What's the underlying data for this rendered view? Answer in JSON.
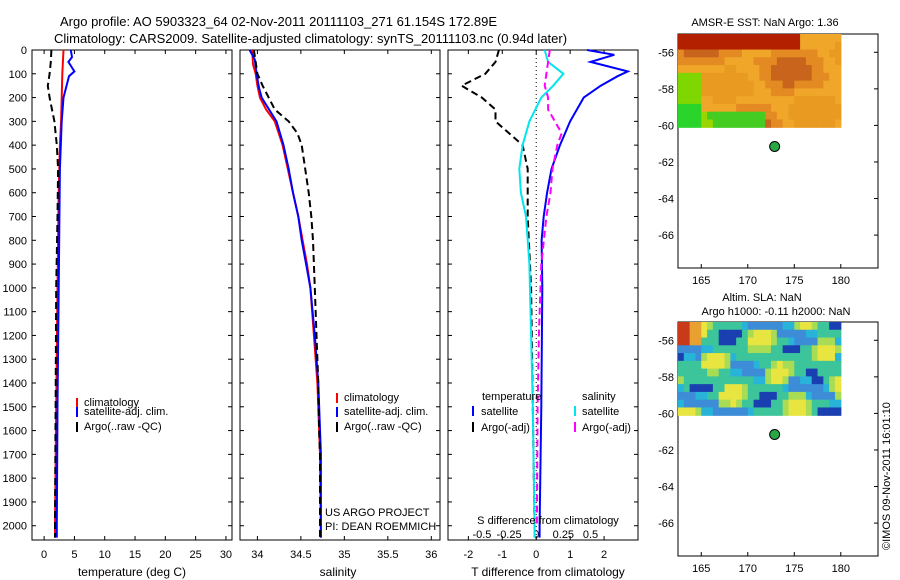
{
  "header": {
    "line1": "Argo profile: AO 5903323_64 02-Nov-2011 20111103_271 61.154S 172.89E",
    "line2": "Climatology: CARS2009. Satellite-adjusted climatology: synTS_20111103.nc (0.94d later)"
  },
  "credit": {
    "line1": "US ARGO PROJECT",
    "line2": "PI: DEAN ROEMMICH"
  },
  "stamp": "©IMOS 09-Nov-2011 16:01:10",
  "colors": {
    "climatology": "#ff0000",
    "satellite": "#0000ff",
    "argo": "#000000",
    "s_satellite": "#00e5ee",
    "s_argo": "#ff00ff"
  },
  "chart_data": [
    {
      "type": "line",
      "xlabel": "temperature (deg C)",
      "ylabel": "",
      "xlim": [
        -2,
        31
      ],
      "ylim": [
        2060,
        0
      ],
      "xticks": [
        0,
        5,
        10,
        15,
        20,
        25,
        30
      ],
      "yticks": [
        0,
        100,
        200,
        300,
        400,
        500,
        600,
        700,
        800,
        900,
        1000,
        1100,
        1200,
        1300,
        1400,
        1500,
        1600,
        1700,
        1800,
        1900,
        2000
      ],
      "legend": [
        "climatology",
        "satellite-adj. clim.",
        "Argo(..raw -QC)"
      ],
      "legend_position": "lower-right",
      "series": [
        {
          "name": "climatology",
          "style": "solid",
          "color": "#ff0000",
          "depth": [
            0,
            100,
            200,
            300,
            400,
            600,
            1000,
            1500,
            2000,
            2050
          ],
          "values": [
            3.2,
            3.0,
            2.9,
            2.8,
            2.6,
            2.4,
            2.2,
            2.0,
            1.8,
            1.8
          ]
        },
        {
          "name": "satellite-adj. clim.",
          "style": "solid",
          "color": "#0000ff",
          "depth": [
            0,
            30,
            50,
            90,
            110,
            200,
            300,
            500,
            1000,
            1500,
            2000,
            2050
          ],
          "values": [
            4.4,
            4.6,
            4.0,
            5.0,
            4.1,
            3.2,
            2.9,
            2.6,
            2.4,
            2.2,
            2.1,
            2.1
          ]
        },
        {
          "name": "Argo(..raw -QC)",
          "style": "dashed",
          "color": "#000000",
          "depth": [
            0,
            50,
            100,
            150,
            200,
            250,
            300,
            400,
            500,
            700,
            1000,
            1500,
            2000,
            2050
          ],
          "values": [
            1.2,
            1.1,
            0.9,
            0.6,
            0.9,
            1.3,
            1.7,
            2.1,
            2.3,
            2.2,
            2.0,
            1.9,
            1.8,
            1.8
          ]
        }
      ]
    },
    {
      "type": "line",
      "xlabel": "salinity",
      "ylabel": "",
      "xlim": [
        33.8,
        36.1
      ],
      "ylim": [
        2060,
        0
      ],
      "xticks": [
        34,
        34.5,
        35,
        35.5,
        36
      ],
      "legend": [
        "climatology",
        "satellite-adj. clim.",
        "Argo(..raw -QC)"
      ],
      "legend_position": "lower-right",
      "series": [
        {
          "name": "climatology",
          "style": "solid",
          "color": "#ff0000",
          "depth": [
            0,
            60,
            100,
            150,
            200,
            250,
            300,
            400,
            500,
            600,
            700,
            800,
            900,
            1000,
            1200,
            1400,
            1700,
            2050
          ],
          "values": [
            33.94,
            33.95,
            33.98,
            34.0,
            34.03,
            34.1,
            34.2,
            34.29,
            34.35,
            34.41,
            34.47,
            34.52,
            34.57,
            34.61,
            34.65,
            34.69,
            34.72,
            34.73
          ]
        },
        {
          "name": "satellite-adj. clim.",
          "style": "solid",
          "color": "#0000ff",
          "depth": [
            0,
            40,
            100,
            160,
            200,
            300,
            400,
            500,
            600,
            700,
            800,
            900,
            1000,
            1200,
            1400,
            1700,
            2050
          ],
          "values": [
            33.91,
            33.97,
            33.99,
            34.02,
            34.05,
            34.22,
            34.3,
            34.36,
            34.41,
            34.47,
            34.51,
            34.56,
            34.61,
            34.66,
            34.7,
            34.73,
            34.73
          ]
        },
        {
          "name": "Argo(..raw -QC)",
          "style": "dashed",
          "color": "#000000",
          "depth": [
            0,
            100,
            150,
            200,
            250,
            300,
            350,
            400,
            500,
            600,
            700,
            800,
            900,
            1000,
            1200,
            1400,
            1600,
            1700,
            2050
          ],
          "values": [
            33.96,
            34.0,
            34.06,
            34.13,
            34.2,
            34.36,
            34.46,
            34.51,
            34.55,
            34.59,
            34.62,
            34.64,
            34.65,
            34.66,
            34.68,
            34.7,
            34.71,
            34.72,
            34.72
          ]
        }
      ]
    },
    {
      "type": "line",
      "xlabel": "T difference from climatology",
      "xlabel2": "S difference from climatology",
      "xlim": [
        -2.6,
        3.0
      ],
      "ylim": [
        2060,
        0
      ],
      "xticks": [
        -2,
        -1,
        0,
        1,
        2
      ],
      "xticks_s_labels": [
        "-0.5",
        "-0.25",
        "0",
        "0.25",
        "0.5"
      ],
      "xticks_s_positions_T": [
        -1.6,
        -0.8,
        0,
        0.8,
        1.6
      ],
      "legend_groups": [
        {
          "title": "temperature",
          "items": [
            "satellite",
            "Argo(-adj)"
          ]
        },
        {
          "title": "salinity",
          "items": [
            "satellite",
            "Argo(-adj)"
          ]
        }
      ],
      "legend_position": "lower",
      "series": [
        {
          "name": "temperature satellite",
          "style": "solid",
          "color": "#0000ff",
          "depth": [
            0,
            20,
            50,
            90,
            110,
            150,
            200,
            300,
            400,
            500,
            600,
            700,
            800,
            1000,
            1500,
            2000,
            2050
          ],
          "values": [
            1.5,
            2.3,
            1.6,
            2.7,
            2.4,
            1.9,
            1.4,
            1.0,
            0.7,
            0.45,
            0.32,
            0.22,
            0.16,
            0.18,
            0.15,
            0.1,
            0.1
          ]
        },
        {
          "name": "temperature Argo(-adj)",
          "style": "dashed",
          "color": "#000000",
          "depth": [
            0,
            50,
            100,
            150,
            200,
            250,
            300,
            400,
            500,
            700,
            1000,
            1500,
            2000,
            2050
          ],
          "values": [
            -1.1,
            -1.2,
            -1.5,
            -2.2,
            -1.6,
            -1.2,
            -1.2,
            -0.4,
            -0.25,
            -0.25,
            -0.15,
            -0.1,
            -0.05,
            -0.05
          ]
        },
        {
          "name": "salinity satellite",
          "style": "solid",
          "color": "#00e5ee",
          "depth": [
            0,
            50,
            100,
            150,
            200,
            300,
            400,
            500,
            600,
            700,
            900,
            1200,
            1500,
            2000,
            2050
          ],
          "values": [
            0.25,
            0.35,
            0.8,
            0.5,
            0.15,
            -0.2,
            -0.4,
            -0.5,
            -0.45,
            -0.3,
            -0.2,
            -0.15,
            -0.1,
            -0.05,
            -0.05
          ]
        },
        {
          "name": "salinity Argo(-adj)",
          "style": "dashed",
          "color": "#ff00ff",
          "depth": [
            0,
            50,
            100,
            150,
            200,
            250,
            300,
            350,
            400,
            500,
            600,
            700,
            900,
            1200,
            1500,
            2000
          ],
          "values": [
            0.4,
            0.35,
            0.3,
            0.25,
            0.35,
            0.35,
            0.55,
            0.75,
            0.62,
            0.48,
            0.42,
            0.3,
            0.15,
            0.08,
            0.04,
            0.02
          ]
        }
      ]
    },
    {
      "type": "heatmap",
      "title": "AMSR-E SST: NaN Argo: 1.36",
      "xlim": [
        162.5,
        184
      ],
      "ylim": [
        -67.8,
        -55
      ],
      "xticks": [
        165,
        170,
        175,
        180
      ],
      "yticks": [
        -56,
        -58,
        -60,
        -62,
        -64,
        -66
      ],
      "marker": {
        "x": 172.89,
        "y": -61.154,
        "color": "#27a844"
      },
      "colormap": "sst"
    },
    {
      "type": "heatmap",
      "title": "Altim. SLA: NaN",
      "subtitle": "Argo h1000: -0.11 h2000: NaN",
      "xlim": [
        162.5,
        184
      ],
      "ylim": [
        -67.8,
        -55
      ],
      "xticks": [
        165,
        170,
        175,
        180
      ],
      "yticks": [
        -56,
        -58,
        -60,
        -62,
        -64,
        -66
      ],
      "marker": {
        "x": 172.89,
        "y": -61.154,
        "color": "#27a844"
      },
      "colormap": "sla"
    }
  ]
}
